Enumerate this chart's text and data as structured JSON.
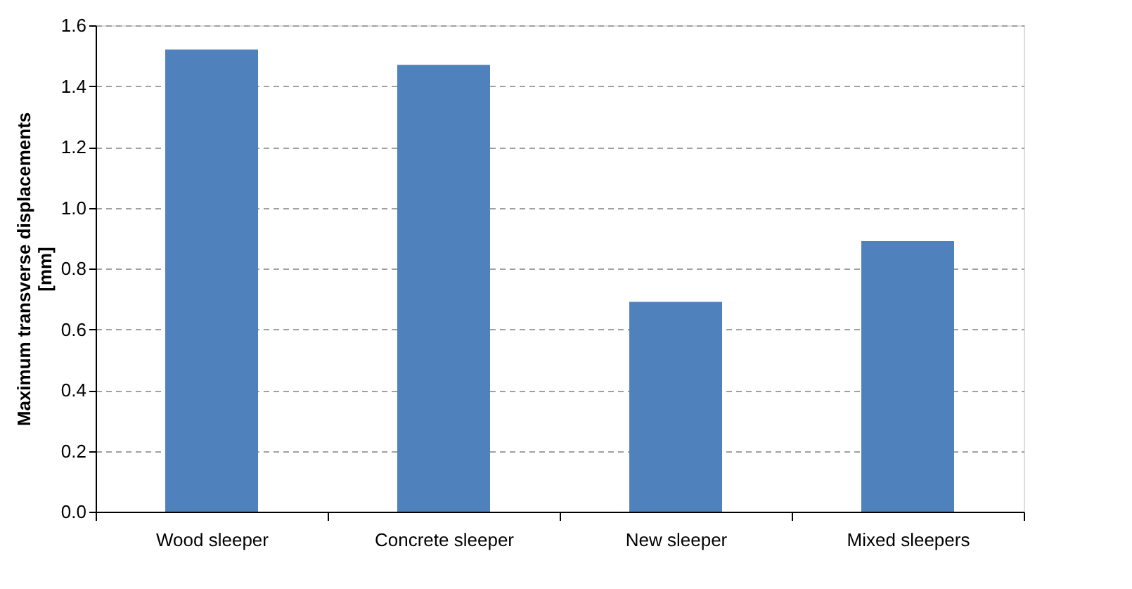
{
  "chart_data": {
    "type": "bar",
    "ylabel": "Maximum transverse displacements\n[mm]",
    "categories": [
      "Wood sleeper",
      "Concrete sleeper",
      "New sleeper",
      "Mixed sleepers"
    ],
    "values": [
      1.52,
      1.47,
      0.69,
      0.89
    ],
    "color": "#4f81bd",
    "ylim": [
      0,
      1.6
    ],
    "yticks": [
      {
        "value": 0,
        "label": "0.0"
      },
      0.2,
      0.4,
      0.6,
      0.8,
      {
        "value": 1,
        "label": "1.0"
      },
      1.2,
      1.4,
      1.6
    ],
    "grid": "y",
    "line_style": "dashed"
  }
}
